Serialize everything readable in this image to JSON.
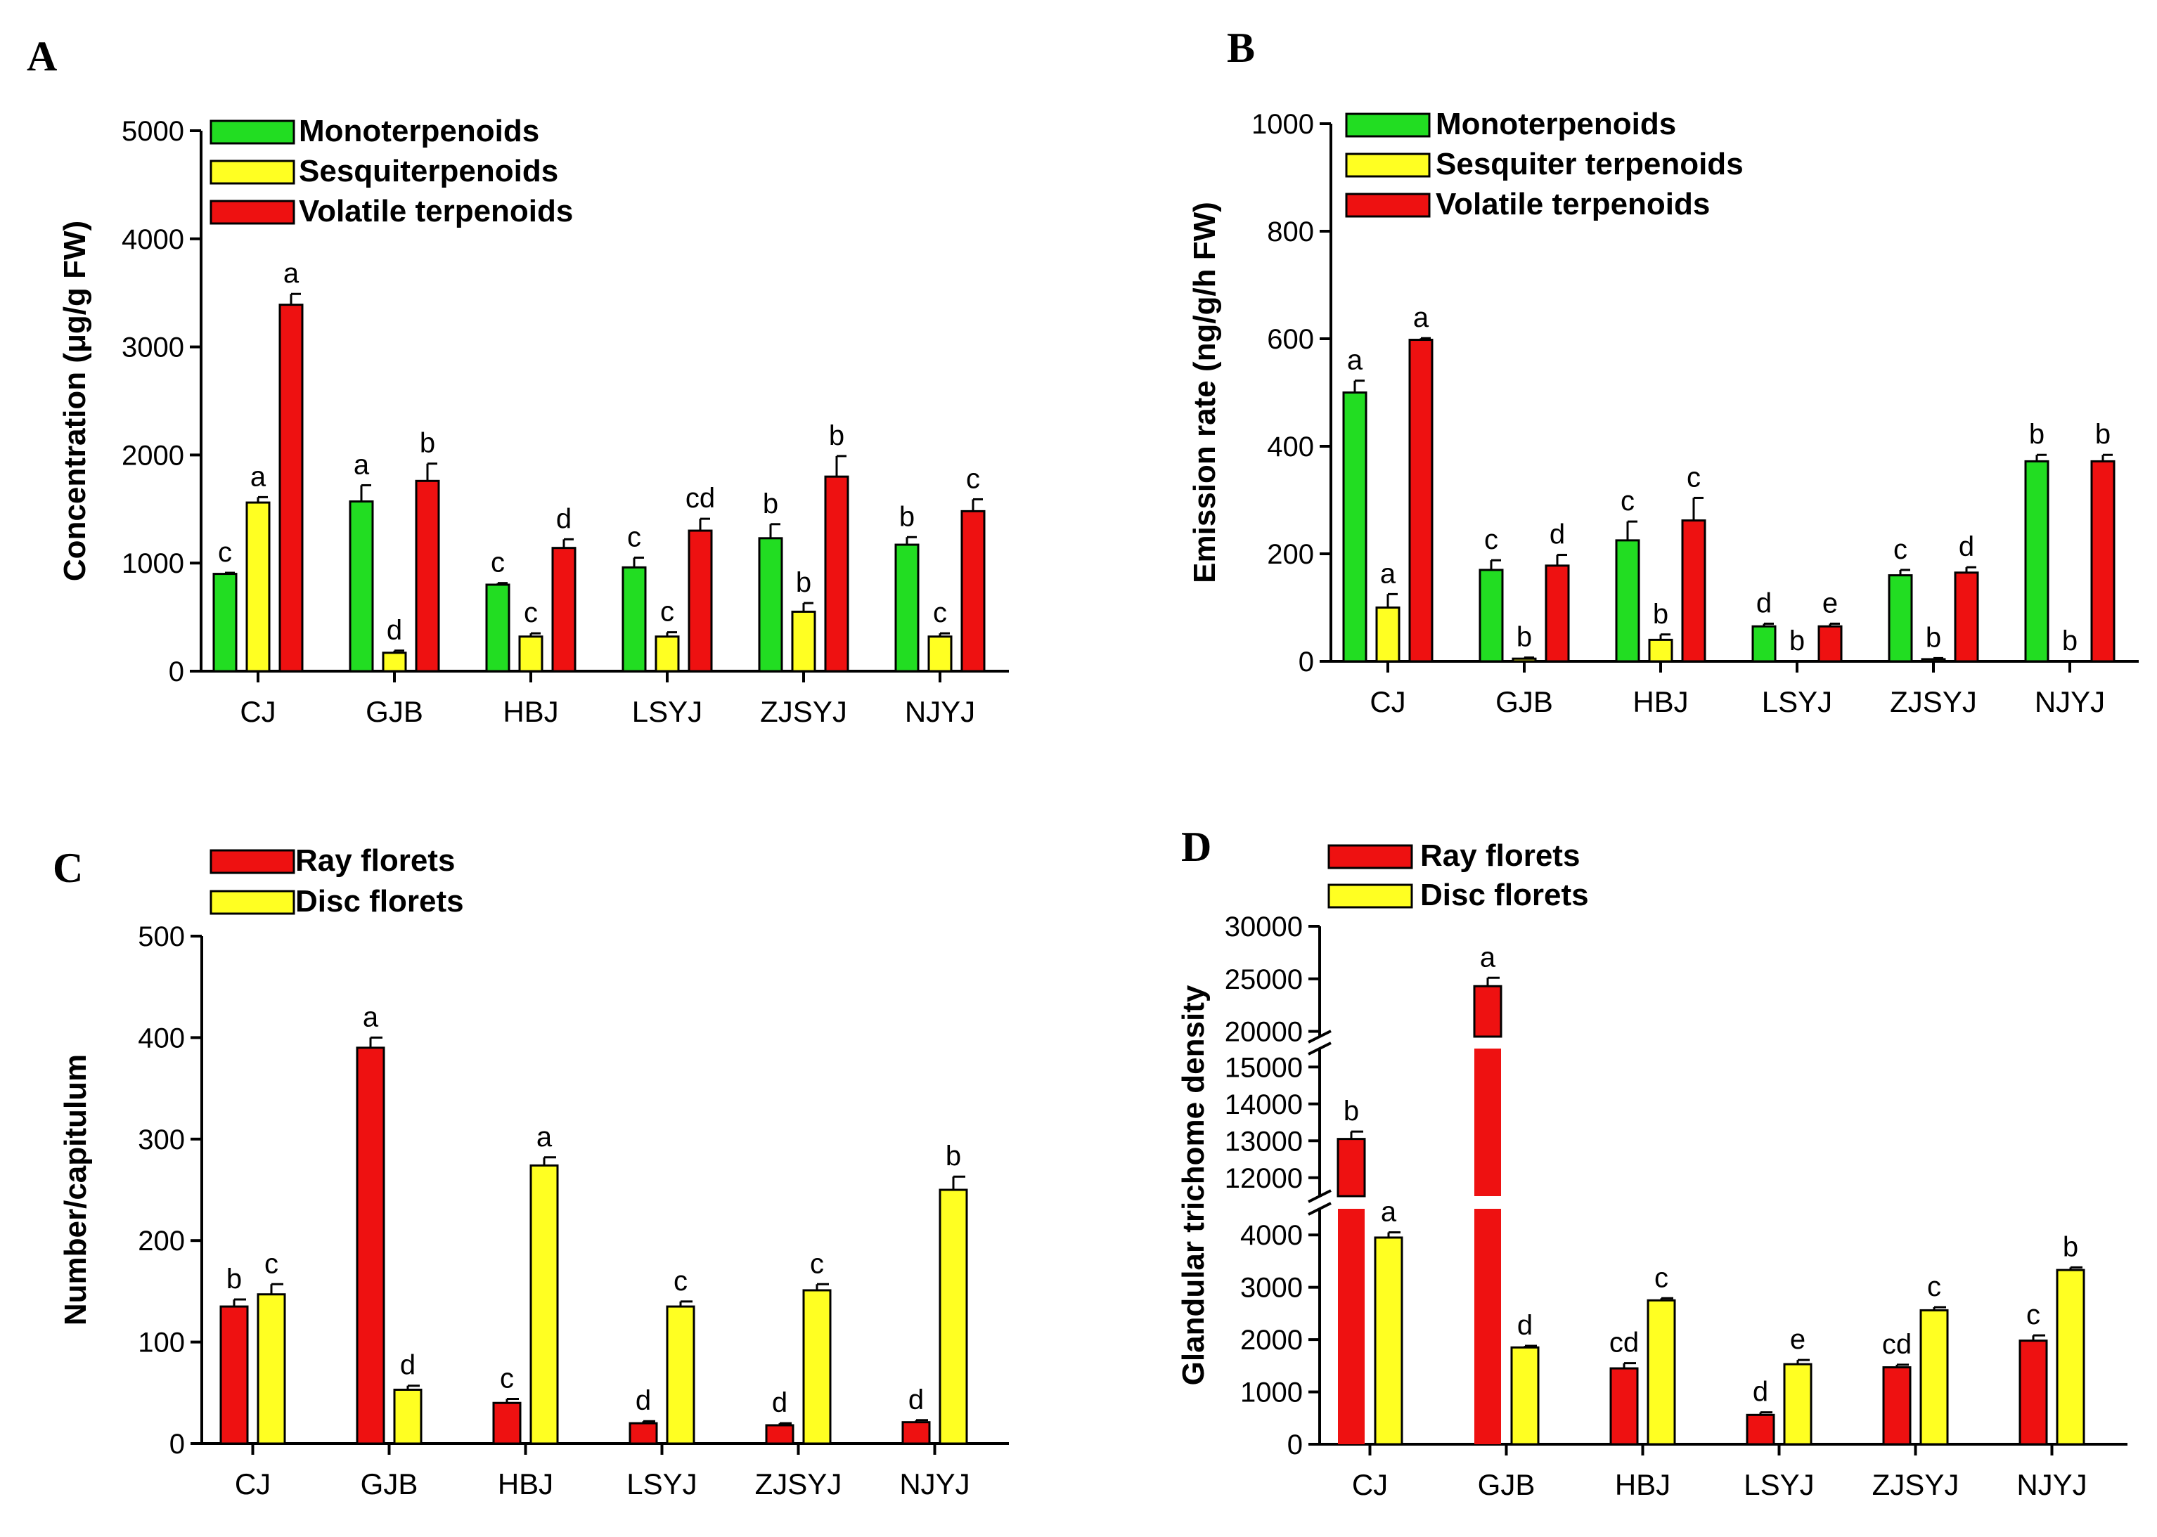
{
  "chart_data": [
    {
      "panel": "A",
      "type": "bar",
      "ylabel": "Concentration (μg/g FW)",
      "ylim": [
        0,
        5000
      ],
      "yticks": [
        0,
        1000,
        2000,
        3000,
        4000,
        5000
      ],
      "categories": [
        "CJ",
        "GJB",
        "HBJ",
        "LSYJ",
        "ZJSYJ",
        "NJYJ"
      ],
      "series": [
        {
          "name": "Monoterpenoids",
          "color": "#22dd22",
          "values": [
            900,
            1570,
            800,
            960,
            1230,
            1170
          ],
          "errors": [
            10,
            150,
            15,
            90,
            130,
            70
          ],
          "letters": [
            "c",
            "a",
            "c",
            "c",
            "b",
            "b"
          ]
        },
        {
          "name": "Sesquiterpenoids",
          "color": "#ffff22",
          "values": [
            1560,
            170,
            320,
            320,
            550,
            320
          ],
          "errors": [
            50,
            20,
            30,
            40,
            80,
            30
          ],
          "letters": [
            "a",
            "d",
            "c",
            "c",
            "b",
            "c"
          ]
        },
        {
          "name": "Volatile  terpenoids",
          "color": "#ee1111",
          "values": [
            3390,
            1760,
            1140,
            1300,
            1800,
            1480
          ],
          "errors": [
            100,
            160,
            80,
            110,
            190,
            110
          ],
          "letters": [
            "a",
            "b",
            "d",
            "cd",
            "b",
            "c"
          ]
        }
      ]
    },
    {
      "panel": "B",
      "type": "bar",
      "ylabel": "Emission rate (ng/g/h FW)",
      "ylim": [
        0,
        1000
      ],
      "yticks": [
        0,
        200,
        400,
        600,
        800,
        1000
      ],
      "categories": [
        "CJ",
        "GJB",
        "HBJ",
        "LSYJ",
        "ZJSYJ",
        "NJYJ"
      ],
      "series": [
        {
          "name": "Monoterpenoids",
          "color": "#22dd22",
          "values": [
            500,
            170,
            225,
            65,
            160,
            372
          ],
          "errors": [
            22,
            18,
            35,
            5,
            10,
            12
          ],
          "letters": [
            "a",
            "c",
            "c",
            "d",
            "c",
            "b"
          ]
        },
        {
          "name": "Sesquiter terpenoids",
          "color": "#ffff22",
          "values": [
            100,
            5,
            40,
            0,
            4,
            0
          ],
          "errors": [
            25,
            2,
            10,
            0,
            2,
            0
          ],
          "letters": [
            "a",
            "b",
            "b",
            "b",
            "b",
            "b"
          ]
        },
        {
          "name": "Volatile terpenoids",
          "color": "#ee1111",
          "values": [
            598,
            178,
            262,
            65,
            165,
            372
          ],
          "errors": [
            3,
            20,
            42,
            5,
            10,
            12
          ],
          "letters": [
            "a",
            "d",
            "c",
            "e",
            "d",
            "b"
          ]
        }
      ]
    },
    {
      "panel": "C",
      "type": "bar",
      "ylabel": "Number/capitulum",
      "ylim": [
        0,
        500
      ],
      "yticks": [
        0,
        100,
        200,
        300,
        400,
        500
      ],
      "categories": [
        "CJ",
        "GJB",
        "HBJ",
        "LSYJ",
        "ZJSYJ",
        "NJYJ"
      ],
      "series": [
        {
          "name": "Ray florets",
          "color": "#ee1111",
          "values": [
            135,
            390,
            40,
            20,
            18,
            21
          ],
          "errors": [
            7,
            10,
            4,
            2,
            2,
            2
          ],
          "letters": [
            "b",
            "a",
            "c",
            "d",
            "d",
            "d"
          ]
        },
        {
          "name": "Disc florets",
          "color": "#ffff22",
          "values": [
            147,
            53,
            274,
            135,
            151,
            250
          ],
          "errors": [
            10,
            4,
            8,
            5,
            6,
            13
          ],
          "letters": [
            "c",
            "d",
            "a",
            "c",
            "c",
            "b"
          ]
        }
      ]
    },
    {
      "panel": "D",
      "type": "bar",
      "ylabel": "Glandular trichome density",
      "ylim": [
        0,
        30000
      ],
      "axis_breaks": [
        [
          4500,
          11500
        ],
        [
          15500,
          19500
        ]
      ],
      "yticks": [
        0,
        1000,
        2000,
        3000,
        4000,
        12000,
        13000,
        14000,
        15000,
        20000,
        25000,
        30000
      ],
      "categories": [
        "CJ",
        "GJB",
        "HBJ",
        "LSYJ",
        "ZJSYJ",
        "NJYJ"
      ],
      "series": [
        {
          "name": "Ray florets",
          "color": "#ee1111",
          "values": [
            13050,
            24300,
            1450,
            560,
            1470,
            1980
          ],
          "errors": [
            200,
            800,
            100,
            50,
            50,
            100
          ],
          "letters": [
            "b",
            "a",
            "cd",
            "d",
            "cd",
            "c"
          ]
        },
        {
          "name": "Disc florets",
          "color": "#ffff22",
          "values": [
            3950,
            1850,
            2750,
            1530,
            2560,
            3330
          ],
          "errors": [
            100,
            30,
            40,
            80,
            60,
            50
          ],
          "letters": [
            "a",
            "d",
            "c",
            "e",
            "c",
            "b"
          ]
        }
      ]
    }
  ]
}
